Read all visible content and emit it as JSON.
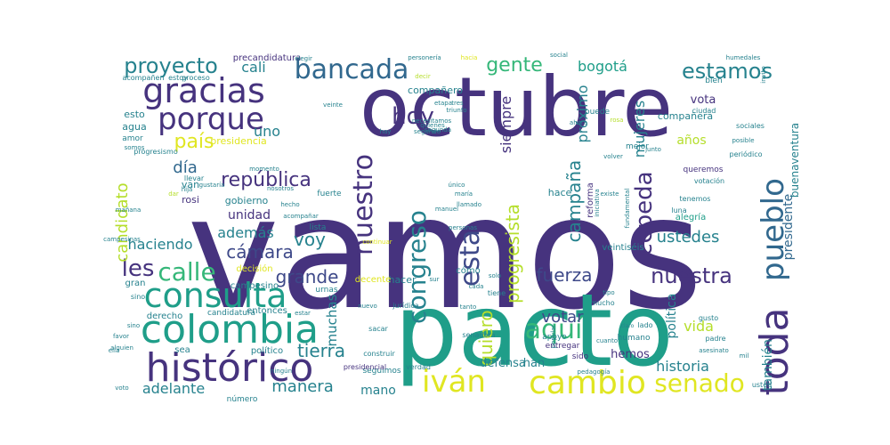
{
  "palette": {
    "background": "#ffffff",
    "dark_purple": "#46337e",
    "indigo": "#3e4989",
    "blue": "#31688e",
    "teal": "#26828e",
    "green": "#1f9e89",
    "light_green": "#35b779",
    "lime": "#6ece58",
    "yellow": "#b5de2b",
    "bright_yellow": "#e0e622"
  },
  "words": [
    "vamos",
    "pacto",
    "octubre",
    "histórico",
    "colombia",
    "consulta",
    "gracias",
    "porque",
    "toda",
    "pueblo",
    "cambio",
    "iván",
    "senado",
    "bancada",
    "proyecto",
    "estamos",
    "gente",
    "aquí",
    "calle",
    "nuestro",
    "esta",
    "congreso",
    "nuestra",
    "cepeda",
    "hoy",
    "país",
    "república",
    "cámara",
    "les",
    "voy",
    "grande",
    "fuerza",
    "campaña",
    "progresista",
    "quiero",
    "votar",
    "presidente",
    "mujeres",
    "próximo",
    "siempre",
    "tierra",
    "muchas",
    "manera",
    "adelante",
    "bogotá",
    "historia",
    "vida",
    "ustedes",
    "política",
    "también",
    "años",
    "día",
    "cali",
    "uno",
    "además",
    "unidad",
    "candidato",
    "haciendo",
    "mano",
    "buenaventura",
    "vota",
    "compañera",
    "compañero",
    "precandidatura",
    "acompañen",
    "estoy",
    "proceso",
    "esto",
    "agua",
    "amor",
    "progresismo",
    "presidencia",
    "gobierno",
    "van",
    "rosi",
    "decisión",
    "campesino",
    "entonces",
    "gran",
    "derecho",
    "candidatura",
    "sea",
    "político",
    "número",
    "hemos",
    "han",
    "defensa",
    "cómo",
    "hacer",
    "decente",
    "jurídica",
    "apoyo",
    "entregar",
    "sido",
    "humano",
    "lado",
    "padre",
    "gusto",
    "reforma",
    "votación",
    "alegría",
    "tenemos",
    "queremos",
    "luna",
    "periódico",
    "sociales",
    "bien",
    "ciudad",
    "mejor",
    "puede",
    "rosa",
    "hace",
    "fuerte",
    "lista",
    "urnas",
    "tiene",
    "sacar",
    "seguimos",
    "construir",
    "senadora",
    "verdad",
    "presidencial",
    "ningún",
    "sino",
    "favor",
    "alguien",
    "voto",
    "hija",
    "llevar",
    "dar",
    "mañana",
    "fundamental",
    "popular",
    "pedagogía",
    "usted",
    "mucho",
    "tipo",
    "claro",
    "cuanto",
    "personas",
    "existe",
    "llamado",
    "único",
    "nuevo",
    "tanto",
    "cada",
    "solo",
    "veinte",
    "decir",
    "necesitamos",
    "etapa",
    "quienes",
    "segunda",
    "segundo",
    "tres",
    "triunfo",
    "hay",
    "nosotros",
    "hecho",
    "somos",
    "momento",
    "elegir",
    "hacia",
    "invito",
    "continuar",
    "campesinas",
    "gustaría",
    "humedales",
    "acompañar",
    "veintiséis",
    "personería",
    "social",
    "posible",
    "junto",
    "volver",
    "asesinato",
    "iniciativa",
    "sur",
    "mil",
    "ella",
    "manuel",
    "maría",
    "ahora",
    "estar",
    "sino"
  ]
}
